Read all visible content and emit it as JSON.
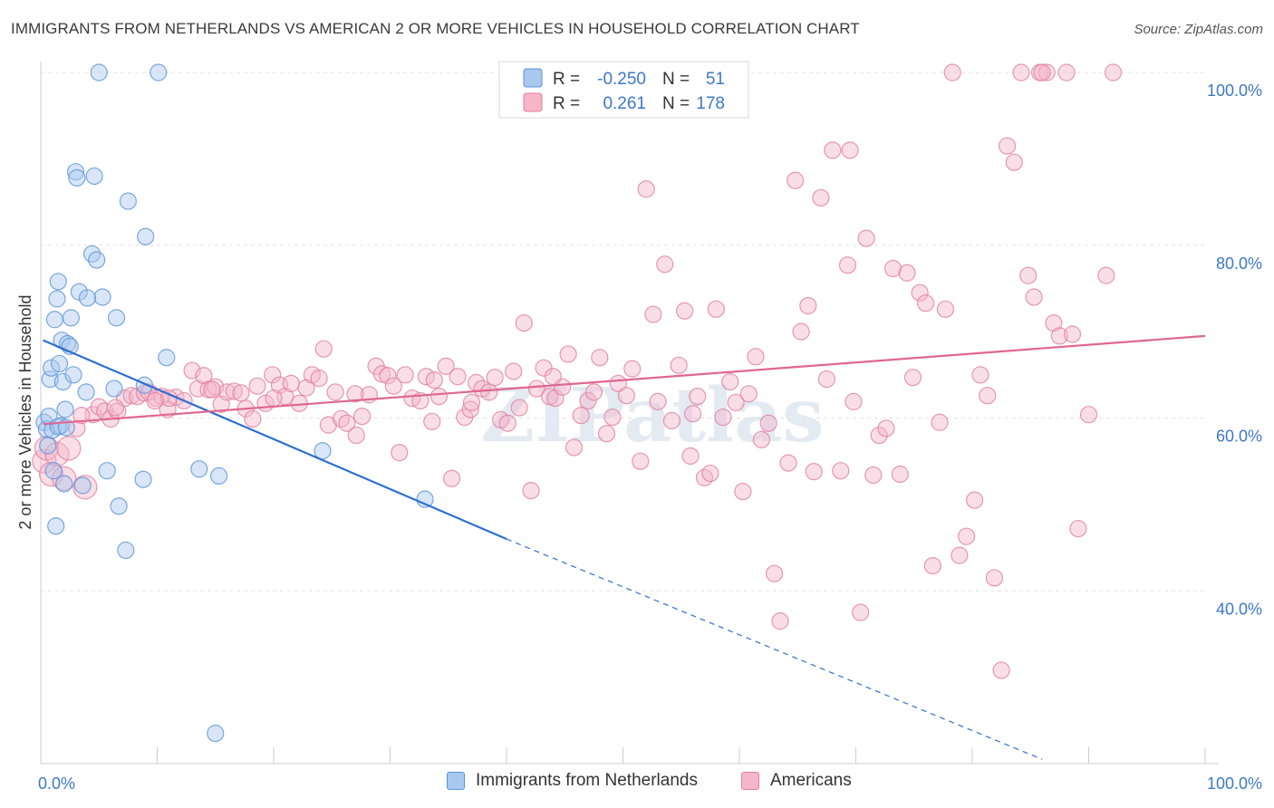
{
  "header": {
    "title": "IMMIGRANTS FROM NETHERLANDS VS AMERICAN 2 OR MORE VEHICLES IN HOUSEHOLD CORRELATION CHART",
    "source": "Source: ZipAtlas.com"
  },
  "watermark": "ZIPatlas",
  "colors": {
    "blue_fill": "#a9c8ef",
    "blue_stroke": "#5b93d6",
    "blue_line": "#2f6fcf",
    "pink_fill": "#f5b6c9",
    "pink_stroke": "#e07fa0",
    "pink_line": "#e06690",
    "axis_text": "#3e78c8"
  },
  "legend": {
    "r_label": "R =",
    "n_label": "N =",
    "entries": [
      {
        "r": "-0.250",
        "n": "51"
      },
      {
        "r": "0.261",
        "n": "178"
      }
    ]
  },
  "bottom_legend": [
    "Immigrants from Netherlands",
    "Americans"
  ],
  "chart_data": {
    "type": "scatter",
    "title": "IMMIGRANTS FROM NETHERLANDS VS AMERICAN 2 OR MORE VEHICLES IN HOUSEHOLD CORRELATION CHART",
    "xlabel": "",
    "ylabel": "2 or more Vehicles in Household",
    "xlim": [
      0,
      100
    ],
    "ylim": [
      20,
      102
    ],
    "x_tick_labels": [
      "0.0%",
      "100.0%"
    ],
    "y_ticks": [
      40,
      60,
      80,
      100
    ],
    "y_tick_labels": [
      "40.0%",
      "60.0%",
      "80.0%",
      "100.0%"
    ],
    "grid": true,
    "legend_position": "top-center",
    "series": [
      {
        "name": "Immigrants from Netherlands",
        "r": -0.25,
        "n": 51,
        "trend": {
          "x0": 0.2,
          "y0": 69.0,
          "x1": 40.0,
          "y1": 46.0,
          "dashed_to_x": 86.0,
          "dashed_to_y": 20.5
        },
        "points": [
          [
            0.3,
            59.5
          ],
          [
            0.5,
            58.7
          ],
          [
            0.6,
            56.8
          ],
          [
            0.8,
            64.5
          ],
          [
            0.9,
            65.8
          ],
          [
            1.0,
            58.6
          ],
          [
            1.1,
            53.9
          ],
          [
            1.2,
            71.4
          ],
          [
            1.4,
            73.8
          ],
          [
            1.5,
            75.8
          ],
          [
            1.6,
            66.3
          ],
          [
            1.7,
            59.1
          ],
          [
            1.8,
            69.0
          ],
          [
            1.9,
            64.2
          ],
          [
            2.0,
            52.4
          ],
          [
            2.1,
            61.0
          ],
          [
            2.3,
            68.6
          ],
          [
            2.5,
            68.3
          ],
          [
            2.6,
            71.6
          ],
          [
            2.8,
            65.0
          ],
          [
            3.0,
            88.5
          ],
          [
            3.1,
            87.8
          ],
          [
            3.3,
            74.6
          ],
          [
            3.6,
            52.2
          ],
          [
            3.9,
            63.0
          ],
          [
            4.4,
            79.0
          ],
          [
            4.6,
            88.0
          ],
          [
            4.8,
            78.3
          ],
          [
            5.0,
            100.0
          ],
          [
            5.3,
            74.0
          ],
          [
            5.7,
            53.9
          ],
          [
            6.3,
            63.4
          ],
          [
            6.5,
            71.6
          ],
          [
            6.7,
            49.8
          ],
          [
            7.3,
            44.7
          ],
          [
            7.5,
            85.1
          ],
          [
            8.8,
            52.9
          ],
          [
            8.9,
            63.8
          ],
          [
            9.0,
            81.0
          ],
          [
            10.1,
            100.0
          ],
          [
            10.8,
            67.0
          ],
          [
            13.6,
            54.1
          ],
          [
            15.0,
            23.5
          ],
          [
            15.3,
            53.3
          ],
          [
            24.2,
            56.2
          ],
          [
            33.0,
            50.6
          ],
          [
            1.3,
            47.5
          ],
          [
            0.7,
            60.2
          ],
          [
            1.5,
            59.0
          ],
          [
            4.0,
            73.9
          ],
          [
            2.2,
            58.9
          ]
        ]
      },
      {
        "name": "Americans",
        "r": 0.261,
        "n": 178,
        "trend": {
          "x0": 0.2,
          "y0": 59.3,
          "x1": 100.0,
          "y1": 69.5
        },
        "points": [
          [
            0.3,
            55.0
          ],
          [
            0.5,
            56.5
          ],
          [
            0.9,
            53.5
          ],
          [
            1.4,
            55.8
          ],
          [
            2.0,
            53.0
          ],
          [
            2.4,
            56.5
          ],
          [
            3.1,
            58.8
          ],
          [
            3.8,
            52.0
          ],
          [
            4.5,
            60.4
          ],
          [
            5.0,
            61.3
          ],
          [
            5.5,
            60.8
          ],
          [
            6.0,
            59.9
          ],
          [
            6.6,
            60.8
          ],
          [
            7.2,
            62.3
          ],
          [
            7.8,
            62.6
          ],
          [
            8.3,
            62.5
          ],
          [
            8.9,
            62.9
          ],
          [
            9.3,
            63.0
          ],
          [
            9.9,
            62.3
          ],
          [
            10.4,
            62.5
          ],
          [
            10.9,
            61.0
          ],
          [
            11.6,
            62.4
          ],
          [
            12.3,
            62.0
          ],
          [
            13.0,
            65.5
          ],
          [
            13.5,
            63.4
          ],
          [
            14.0,
            64.9
          ],
          [
            14.4,
            63.3
          ],
          [
            15.0,
            63.6
          ],
          [
            15.5,
            61.6
          ],
          [
            16.0,
            63.0
          ],
          [
            16.6,
            63.1
          ],
          [
            17.2,
            62.9
          ],
          [
            17.6,
            61.1
          ],
          [
            18.2,
            59.9
          ],
          [
            18.6,
            63.7
          ],
          [
            19.3,
            61.7
          ],
          [
            19.9,
            65.0
          ],
          [
            20.5,
            63.8
          ],
          [
            21.0,
            62.5
          ],
          [
            21.5,
            64.0
          ],
          [
            22.2,
            61.7
          ],
          [
            22.8,
            63.5
          ],
          [
            23.3,
            65.0
          ],
          [
            23.9,
            64.6
          ],
          [
            24.3,
            68.0
          ],
          [
            24.7,
            59.2
          ],
          [
            25.3,
            63.0
          ],
          [
            25.8,
            59.9
          ],
          [
            26.3,
            59.4
          ],
          [
            27.1,
            58.0
          ],
          [
            27.6,
            60.2
          ],
          [
            28.2,
            62.7
          ],
          [
            28.8,
            66.0
          ],
          [
            29.3,
            65.1
          ],
          [
            29.8,
            64.9
          ],
          [
            30.3,
            63.7
          ],
          [
            30.8,
            56.0
          ],
          [
            31.3,
            65.0
          ],
          [
            31.9,
            62.3
          ],
          [
            32.6,
            62.0
          ],
          [
            33.1,
            64.8
          ],
          [
            33.6,
            59.6
          ],
          [
            34.2,
            62.5
          ],
          [
            34.8,
            66.0
          ],
          [
            35.3,
            53.0
          ],
          [
            35.8,
            64.8
          ],
          [
            36.4,
            60.1
          ],
          [
            36.9,
            61.0
          ],
          [
            37.4,
            64.1
          ],
          [
            37.9,
            63.4
          ],
          [
            38.5,
            63.0
          ],
          [
            39.0,
            64.7
          ],
          [
            39.5,
            59.8
          ],
          [
            40.1,
            59.4
          ],
          [
            40.6,
            65.4
          ],
          [
            41.1,
            61.2
          ],
          [
            41.5,
            71.0
          ],
          [
            42.1,
            51.6
          ],
          [
            42.6,
            63.4
          ],
          [
            43.2,
            65.8
          ],
          [
            43.7,
            62.5
          ],
          [
            44.2,
            62.3
          ],
          [
            44.8,
            63.6
          ],
          [
            45.3,
            67.4
          ],
          [
            45.8,
            56.6
          ],
          [
            46.4,
            60.3
          ],
          [
            47.0,
            62.0
          ],
          [
            47.5,
            63.0
          ],
          [
            48.0,
            67.0
          ],
          [
            48.6,
            58.2
          ],
          [
            49.1,
            60.1
          ],
          [
            49.6,
            64.0
          ],
          [
            50.3,
            62.6
          ],
          [
            50.8,
            65.7
          ],
          [
            51.5,
            55.0
          ],
          [
            52.0,
            86.5
          ],
          [
            52.6,
            72.0
          ],
          [
            53.0,
            61.9
          ],
          [
            53.6,
            77.8
          ],
          [
            54.2,
            59.7
          ],
          [
            54.8,
            66.1
          ],
          [
            55.3,
            72.4
          ],
          [
            55.8,
            55.6
          ],
          [
            56.4,
            62.5
          ],
          [
            57.0,
            53.1
          ],
          [
            57.5,
            53.6
          ],
          [
            58.0,
            72.6
          ],
          [
            58.6,
            60.1
          ],
          [
            59.2,
            64.2
          ],
          [
            59.7,
            61.8
          ],
          [
            60.3,
            51.5
          ],
          [
            60.8,
            62.8
          ],
          [
            61.4,
            67.1
          ],
          [
            61.9,
            57.5
          ],
          [
            62.5,
            59.4
          ],
          [
            63.0,
            42.0
          ],
          [
            63.5,
            36.5
          ],
          [
            64.2,
            54.8
          ],
          [
            64.8,
            87.5
          ],
          [
            65.3,
            70.0
          ],
          [
            65.9,
            73.0
          ],
          [
            66.4,
            53.8
          ],
          [
            67.0,
            85.5
          ],
          [
            67.5,
            64.5
          ],
          [
            68.0,
            91.0
          ],
          [
            68.7,
            53.9
          ],
          [
            69.3,
            77.7
          ],
          [
            69.8,
            61.9
          ],
          [
            70.4,
            37.5
          ],
          [
            70.9,
            80.8
          ],
          [
            71.5,
            53.4
          ],
          [
            72.0,
            58.0
          ],
          [
            72.6,
            58.8
          ],
          [
            73.2,
            77.3
          ],
          [
            73.8,
            53.5
          ],
          [
            74.4,
            76.8
          ],
          [
            74.9,
            64.7
          ],
          [
            75.5,
            74.5
          ],
          [
            76.0,
            73.3
          ],
          [
            76.6,
            42.9
          ],
          [
            77.2,
            59.5
          ],
          [
            77.7,
            72.6
          ],
          [
            78.3,
            100.0
          ],
          [
            78.9,
            44.1
          ],
          [
            79.5,
            46.3
          ],
          [
            80.2,
            50.5
          ],
          [
            80.7,
            65.0
          ],
          [
            81.3,
            62.6
          ],
          [
            81.9,
            41.5
          ],
          [
            82.5,
            30.8
          ],
          [
            83.0,
            91.5
          ],
          [
            83.6,
            89.6
          ],
          [
            84.2,
            100.0
          ],
          [
            84.8,
            76.5
          ],
          [
            85.3,
            74.0
          ],
          [
            85.8,
            100.0
          ],
          [
            86.4,
            100.0
          ],
          [
            87.0,
            71.0
          ],
          [
            87.5,
            69.5
          ],
          [
            88.1,
            100.0
          ],
          [
            88.6,
            69.7
          ],
          [
            89.1,
            47.2
          ],
          [
            90.0,
            60.4
          ],
          [
            91.5,
            76.5
          ],
          [
            92.1,
            100.0
          ],
          [
            86.0,
            100.0
          ],
          [
            69.5,
            91.0
          ],
          [
            56.0,
            60.5
          ],
          [
            44.0,
            64.8
          ],
          [
            37.0,
            61.8
          ],
          [
            33.8,
            64.4
          ],
          [
            27.0,
            62.8
          ],
          [
            20.0,
            62.3
          ],
          [
            14.7,
            63.3
          ],
          [
            11.0,
            62.3
          ],
          [
            9.8,
            62.0
          ],
          [
            6.4,
            61.2
          ],
          [
            3.5,
            60.3
          ]
        ]
      }
    ]
  }
}
